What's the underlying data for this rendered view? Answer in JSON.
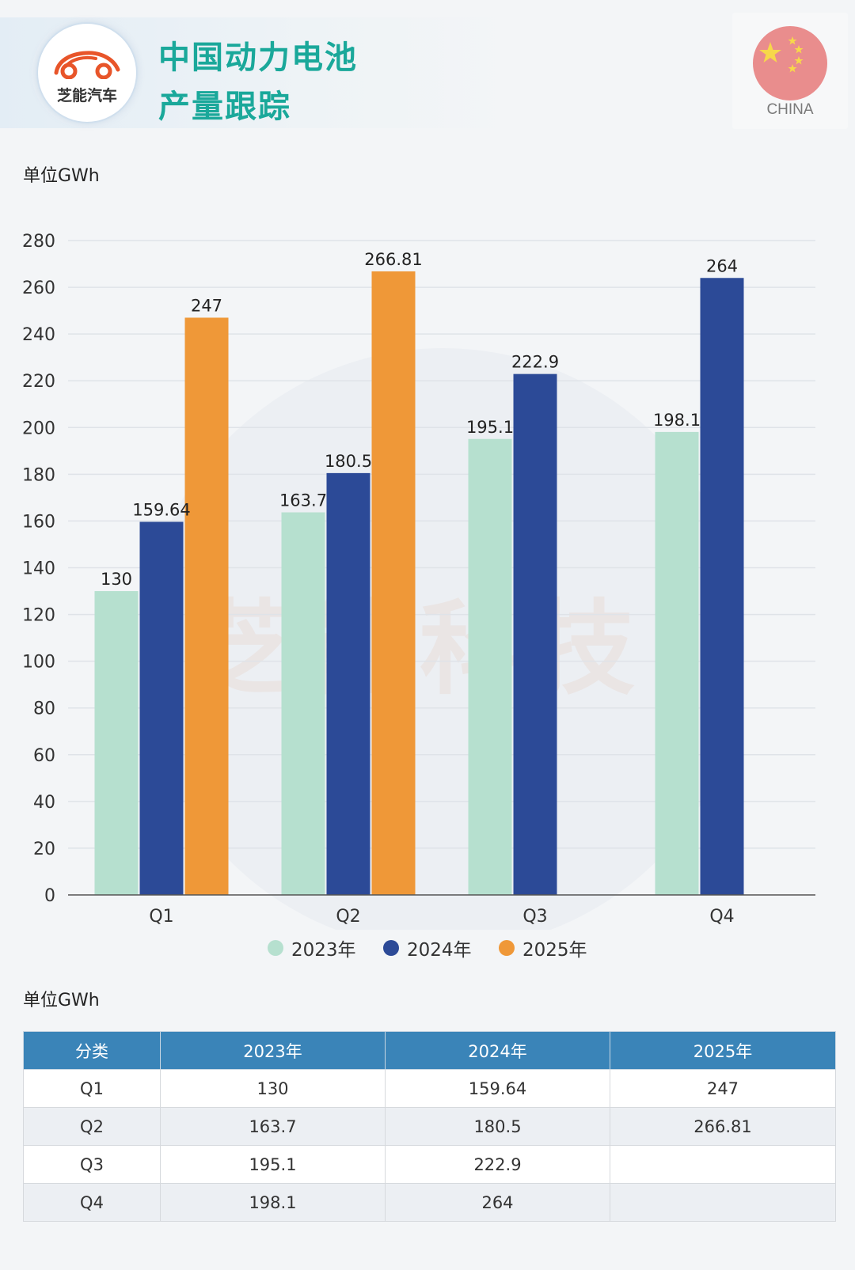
{
  "header": {
    "logo_text": "芝能汽车",
    "title_line1": "中国动力电池",
    "title_line2": "产量跟踪",
    "flag_label": "CHINA"
  },
  "watermark": "芝能科技",
  "chart_unit": "单位GWh",
  "table_unit": "单位GWh",
  "colors": {
    "title": "#1aa89a",
    "series_2023": "#b6e0cf",
    "series_2024": "#2c4a97",
    "series_2025": "#ef9838",
    "table_header": "#3a84b8"
  },
  "chart_data": {
    "type": "bar",
    "title": "",
    "xlabel": "",
    "ylabel": "单位GWh",
    "categories": [
      "Q1",
      "Q2",
      "Q3",
      "Q4"
    ],
    "series": [
      {
        "name": "2023年",
        "values": [
          130,
          163.7,
          195.1,
          198.1
        ],
        "labels": [
          "130",
          "163.7",
          "195.1",
          "198.1"
        ]
      },
      {
        "name": "2024年",
        "values": [
          159.64,
          180.5,
          222.9,
          264
        ],
        "labels": [
          "159.64",
          "180.5",
          "222.9",
          "264"
        ]
      },
      {
        "name": "2025年",
        "values": [
          247,
          266.81,
          null,
          null
        ],
        "labels": [
          "247",
          "266.81",
          "",
          ""
        ]
      }
    ],
    "ylim": [
      0,
      280
    ],
    "yticks": [
      0,
      20,
      40,
      60,
      80,
      100,
      120,
      140,
      160,
      180,
      200,
      220,
      240,
      260,
      280
    ],
    "grid": true,
    "legend_position": "bottom"
  },
  "table": {
    "headers": [
      "分类",
      "2023年",
      "2024年",
      "2025年"
    ],
    "rows": [
      [
        "Q1",
        "130",
        "159.64",
        "247"
      ],
      [
        "Q2",
        "163.7",
        "180.5",
        "266.81"
      ],
      [
        "Q3",
        "195.1",
        "222.9",
        ""
      ],
      [
        "Q4",
        "198.1",
        "264",
        ""
      ]
    ]
  }
}
